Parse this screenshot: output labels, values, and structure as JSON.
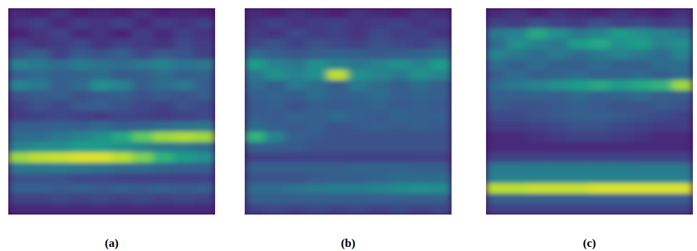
{
  "chart_data": [
    {
      "type": "heatmap",
      "title": "(a)",
      "tick_labels": false,
      "zlim": [
        0,
        1
      ],
      "cells": [
        [
          0.12,
          0.1,
          0.15,
          0.1,
          0.12,
          0.1,
          0.15,
          0.1,
          0.12,
          0.1
        ],
        [
          0.15,
          0.2,
          0.12,
          0.18,
          0.15,
          0.2,
          0.12,
          0.18,
          0.15,
          0.2
        ],
        [
          0.1,
          0.15,
          0.2,
          0.12,
          0.15,
          0.1,
          0.18,
          0.12,
          0.2,
          0.15
        ],
        [
          0.2,
          0.15,
          0.18,
          0.22,
          0.15,
          0.2,
          0.18,
          0.15,
          0.22,
          0.18
        ],
        [
          0.25,
          0.3,
          0.2,
          0.28,
          0.25,
          0.3,
          0.22,
          0.28,
          0.25,
          0.2
        ],
        [
          0.45,
          0.4,
          0.35,
          0.42,
          0.38,
          0.35,
          0.4,
          0.45,
          0.38,
          0.4
        ],
        [
          0.3,
          0.35,
          0.3,
          0.32,
          0.35,
          0.28,
          0.3,
          0.35,
          0.3,
          0.32
        ],
        [
          0.45,
          0.4,
          0.3,
          0.35,
          0.5,
          0.45,
          0.3,
          0.35,
          0.4,
          0.3
        ],
        [
          0.25,
          0.28,
          0.3,
          0.25,
          0.28,
          0.3,
          0.25,
          0.28,
          0.25,
          0.3
        ],
        [
          0.2,
          0.25,
          0.22,
          0.28,
          0.3,
          0.25,
          0.22,
          0.2,
          0.25,
          0.22
        ],
        [
          0.18,
          0.2,
          0.22,
          0.2,
          0.18,
          0.22,
          0.2,
          0.18,
          0.2,
          0.22
        ],
        [
          0.3,
          0.3,
          0.32,
          0.3,
          0.35,
          0.3,
          0.32,
          0.35,
          0.38,
          0.4
        ],
        [
          0.35,
          0.35,
          0.4,
          0.45,
          0.5,
          0.6,
          0.75,
          0.85,
          0.88,
          0.85
        ],
        [
          0.45,
          0.5,
          0.5,
          0.55,
          0.55,
          0.5,
          0.45,
          0.4,
          0.4,
          0.35
        ],
        [
          0.85,
          0.9,
          0.92,
          0.95,
          0.95,
          0.9,
          0.8,
          0.65,
          0.55,
          0.5
        ],
        [
          0.4,
          0.4,
          0.42,
          0.4,
          0.38,
          0.35,
          0.35,
          0.32,
          0.3,
          0.3
        ],
        [
          0.25,
          0.25,
          0.25,
          0.22,
          0.22,
          0.2,
          0.2,
          0.2,
          0.2,
          0.2
        ],
        [
          0.3,
          0.3,
          0.28,
          0.3,
          0.28,
          0.3,
          0.28,
          0.3,
          0.28,
          0.3
        ],
        [
          0.2,
          0.2,
          0.22,
          0.2,
          0.22,
          0.2,
          0.22,
          0.2,
          0.22,
          0.2
        ],
        [
          0.12,
          0.12,
          0.12,
          0.12,
          0.12,
          0.12,
          0.12,
          0.12,
          0.12,
          0.12
        ]
      ]
    },
    {
      "type": "heatmap",
      "title": "(b)",
      "tick_labels": false,
      "zlim": [
        0,
        1
      ],
      "cells": [
        [
          0.12,
          0.1,
          0.15,
          0.12,
          0.1,
          0.15,
          0.12,
          0.1,
          0.15,
          0.12
        ],
        [
          0.15,
          0.2,
          0.15,
          0.18,
          0.2,
          0.15,
          0.18,
          0.2,
          0.15,
          0.18
        ],
        [
          0.18,
          0.15,
          0.22,
          0.18,
          0.2,
          0.15,
          0.22,
          0.18,
          0.2,
          0.15
        ],
        [
          0.22,
          0.25,
          0.2,
          0.25,
          0.22,
          0.2,
          0.25,
          0.22,
          0.2,
          0.25
        ],
        [
          0.35,
          0.3,
          0.28,
          0.3,
          0.32,
          0.3,
          0.28,
          0.3,
          0.32,
          0.35
        ],
        [
          0.55,
          0.45,
          0.4,
          0.5,
          0.45,
          0.4,
          0.45,
          0.5,
          0.45,
          0.55
        ],
        [
          0.4,
          0.5,
          0.45,
          0.5,
          0.9,
          0.5,
          0.45,
          0.4,
          0.5,
          0.45
        ],
        [
          0.35,
          0.3,
          0.4,
          0.35,
          0.3,
          0.4,
          0.35,
          0.3,
          0.35,
          0.3
        ],
        [
          0.3,
          0.32,
          0.3,
          0.35,
          0.3,
          0.32,
          0.35,
          0.3,
          0.32,
          0.3
        ],
        [
          0.28,
          0.3,
          0.25,
          0.3,
          0.28,
          0.3,
          0.32,
          0.28,
          0.3,
          0.28
        ],
        [
          0.3,
          0.28,
          0.32,
          0.3,
          0.35,
          0.3,
          0.28,
          0.32,
          0.3,
          0.3
        ],
        [
          0.35,
          0.3,
          0.28,
          0.3,
          0.25,
          0.28,
          0.3,
          0.28,
          0.3,
          0.28
        ],
        [
          0.65,
          0.45,
          0.3,
          0.28,
          0.25,
          0.25,
          0.25,
          0.25,
          0.25,
          0.25
        ],
        [
          0.3,
          0.3,
          0.28,
          0.25,
          0.25,
          0.25,
          0.25,
          0.25,
          0.25,
          0.25
        ],
        [
          0.2,
          0.2,
          0.2,
          0.2,
          0.2,
          0.2,
          0.2,
          0.2,
          0.2,
          0.2
        ],
        [
          0.3,
          0.3,
          0.3,
          0.3,
          0.3,
          0.32,
          0.32,
          0.32,
          0.3,
          0.3
        ],
        [
          0.25,
          0.25,
          0.25,
          0.28,
          0.3,
          0.3,
          0.32,
          0.35,
          0.35,
          0.35
        ],
        [
          0.35,
          0.35,
          0.38,
          0.4,
          0.42,
          0.42,
          0.45,
          0.48,
          0.5,
          0.48
        ],
        [
          0.3,
          0.3,
          0.3,
          0.3,
          0.3,
          0.3,
          0.3,
          0.3,
          0.3,
          0.3
        ],
        [
          0.2,
          0.22,
          0.2,
          0.22,
          0.2,
          0.22,
          0.2,
          0.22,
          0.2,
          0.22
        ]
      ]
    },
    {
      "type": "heatmap",
      "title": "(c)",
      "tick_labels": false,
      "zlim": [
        0,
        1
      ],
      "cells": [
        [
          0.12,
          0.15,
          0.1,
          0.15,
          0.12,
          0.1,
          0.15,
          0.12,
          0.1,
          0.15
        ],
        [
          0.2,
          0.18,
          0.25,
          0.2,
          0.18,
          0.25,
          0.2,
          0.22,
          0.18,
          0.2
        ],
        [
          0.4,
          0.45,
          0.6,
          0.5,
          0.4,
          0.45,
          0.55,
          0.5,
          0.45,
          0.4
        ],
        [
          0.35,
          0.5,
          0.45,
          0.4,
          0.55,
          0.6,
          0.5,
          0.55,
          0.45,
          0.5
        ],
        [
          0.45,
          0.4,
          0.35,
          0.4,
          0.35,
          0.4,
          0.45,
          0.4,
          0.35,
          0.45
        ],
        [
          0.35,
          0.3,
          0.35,
          0.3,
          0.3,
          0.35,
          0.3,
          0.3,
          0.35,
          0.35
        ],
        [
          0.3,
          0.35,
          0.3,
          0.32,
          0.35,
          0.3,
          0.32,
          0.35,
          0.3,
          0.35
        ],
        [
          0.35,
          0.4,
          0.45,
          0.5,
          0.55,
          0.6,
          0.55,
          0.6,
          0.65,
          0.85
        ],
        [
          0.3,
          0.3,
          0.32,
          0.3,
          0.35,
          0.3,
          0.32,
          0.35,
          0.3,
          0.3
        ],
        [
          0.28,
          0.25,
          0.25,
          0.28,
          0.3,
          0.28,
          0.25,
          0.25,
          0.28,
          0.25
        ],
        [
          0.22,
          0.22,
          0.25,
          0.28,
          0.3,
          0.3,
          0.28,
          0.25,
          0.22,
          0.2
        ],
        [
          0.18,
          0.18,
          0.2,
          0.22,
          0.25,
          0.25,
          0.22,
          0.2,
          0.18,
          0.18
        ],
        [
          0.12,
          0.12,
          0.15,
          0.18,
          0.2,
          0.2,
          0.18,
          0.15,
          0.12,
          0.12
        ],
        [
          0.12,
          0.12,
          0.12,
          0.12,
          0.12,
          0.12,
          0.12,
          0.12,
          0.12,
          0.12
        ],
        [
          0.2,
          0.2,
          0.2,
          0.2,
          0.2,
          0.2,
          0.2,
          0.2,
          0.2,
          0.2
        ],
        [
          0.4,
          0.4,
          0.42,
          0.42,
          0.42,
          0.42,
          0.42,
          0.4,
          0.4,
          0.4
        ],
        [
          0.45,
          0.45,
          0.45,
          0.45,
          0.45,
          0.45,
          0.45,
          0.45,
          0.45,
          0.45
        ],
        [
          0.9,
          0.9,
          0.92,
          0.92,
          0.92,
          0.95,
          0.95,
          0.95,
          0.95,
          0.95
        ],
        [
          0.3,
          0.3,
          0.3,
          0.3,
          0.3,
          0.3,
          0.3,
          0.3,
          0.3,
          0.3
        ],
        [
          0.2,
          0.2,
          0.2,
          0.2,
          0.2,
          0.2,
          0.2,
          0.2,
          0.2,
          0.2
        ]
      ]
    }
  ]
}
